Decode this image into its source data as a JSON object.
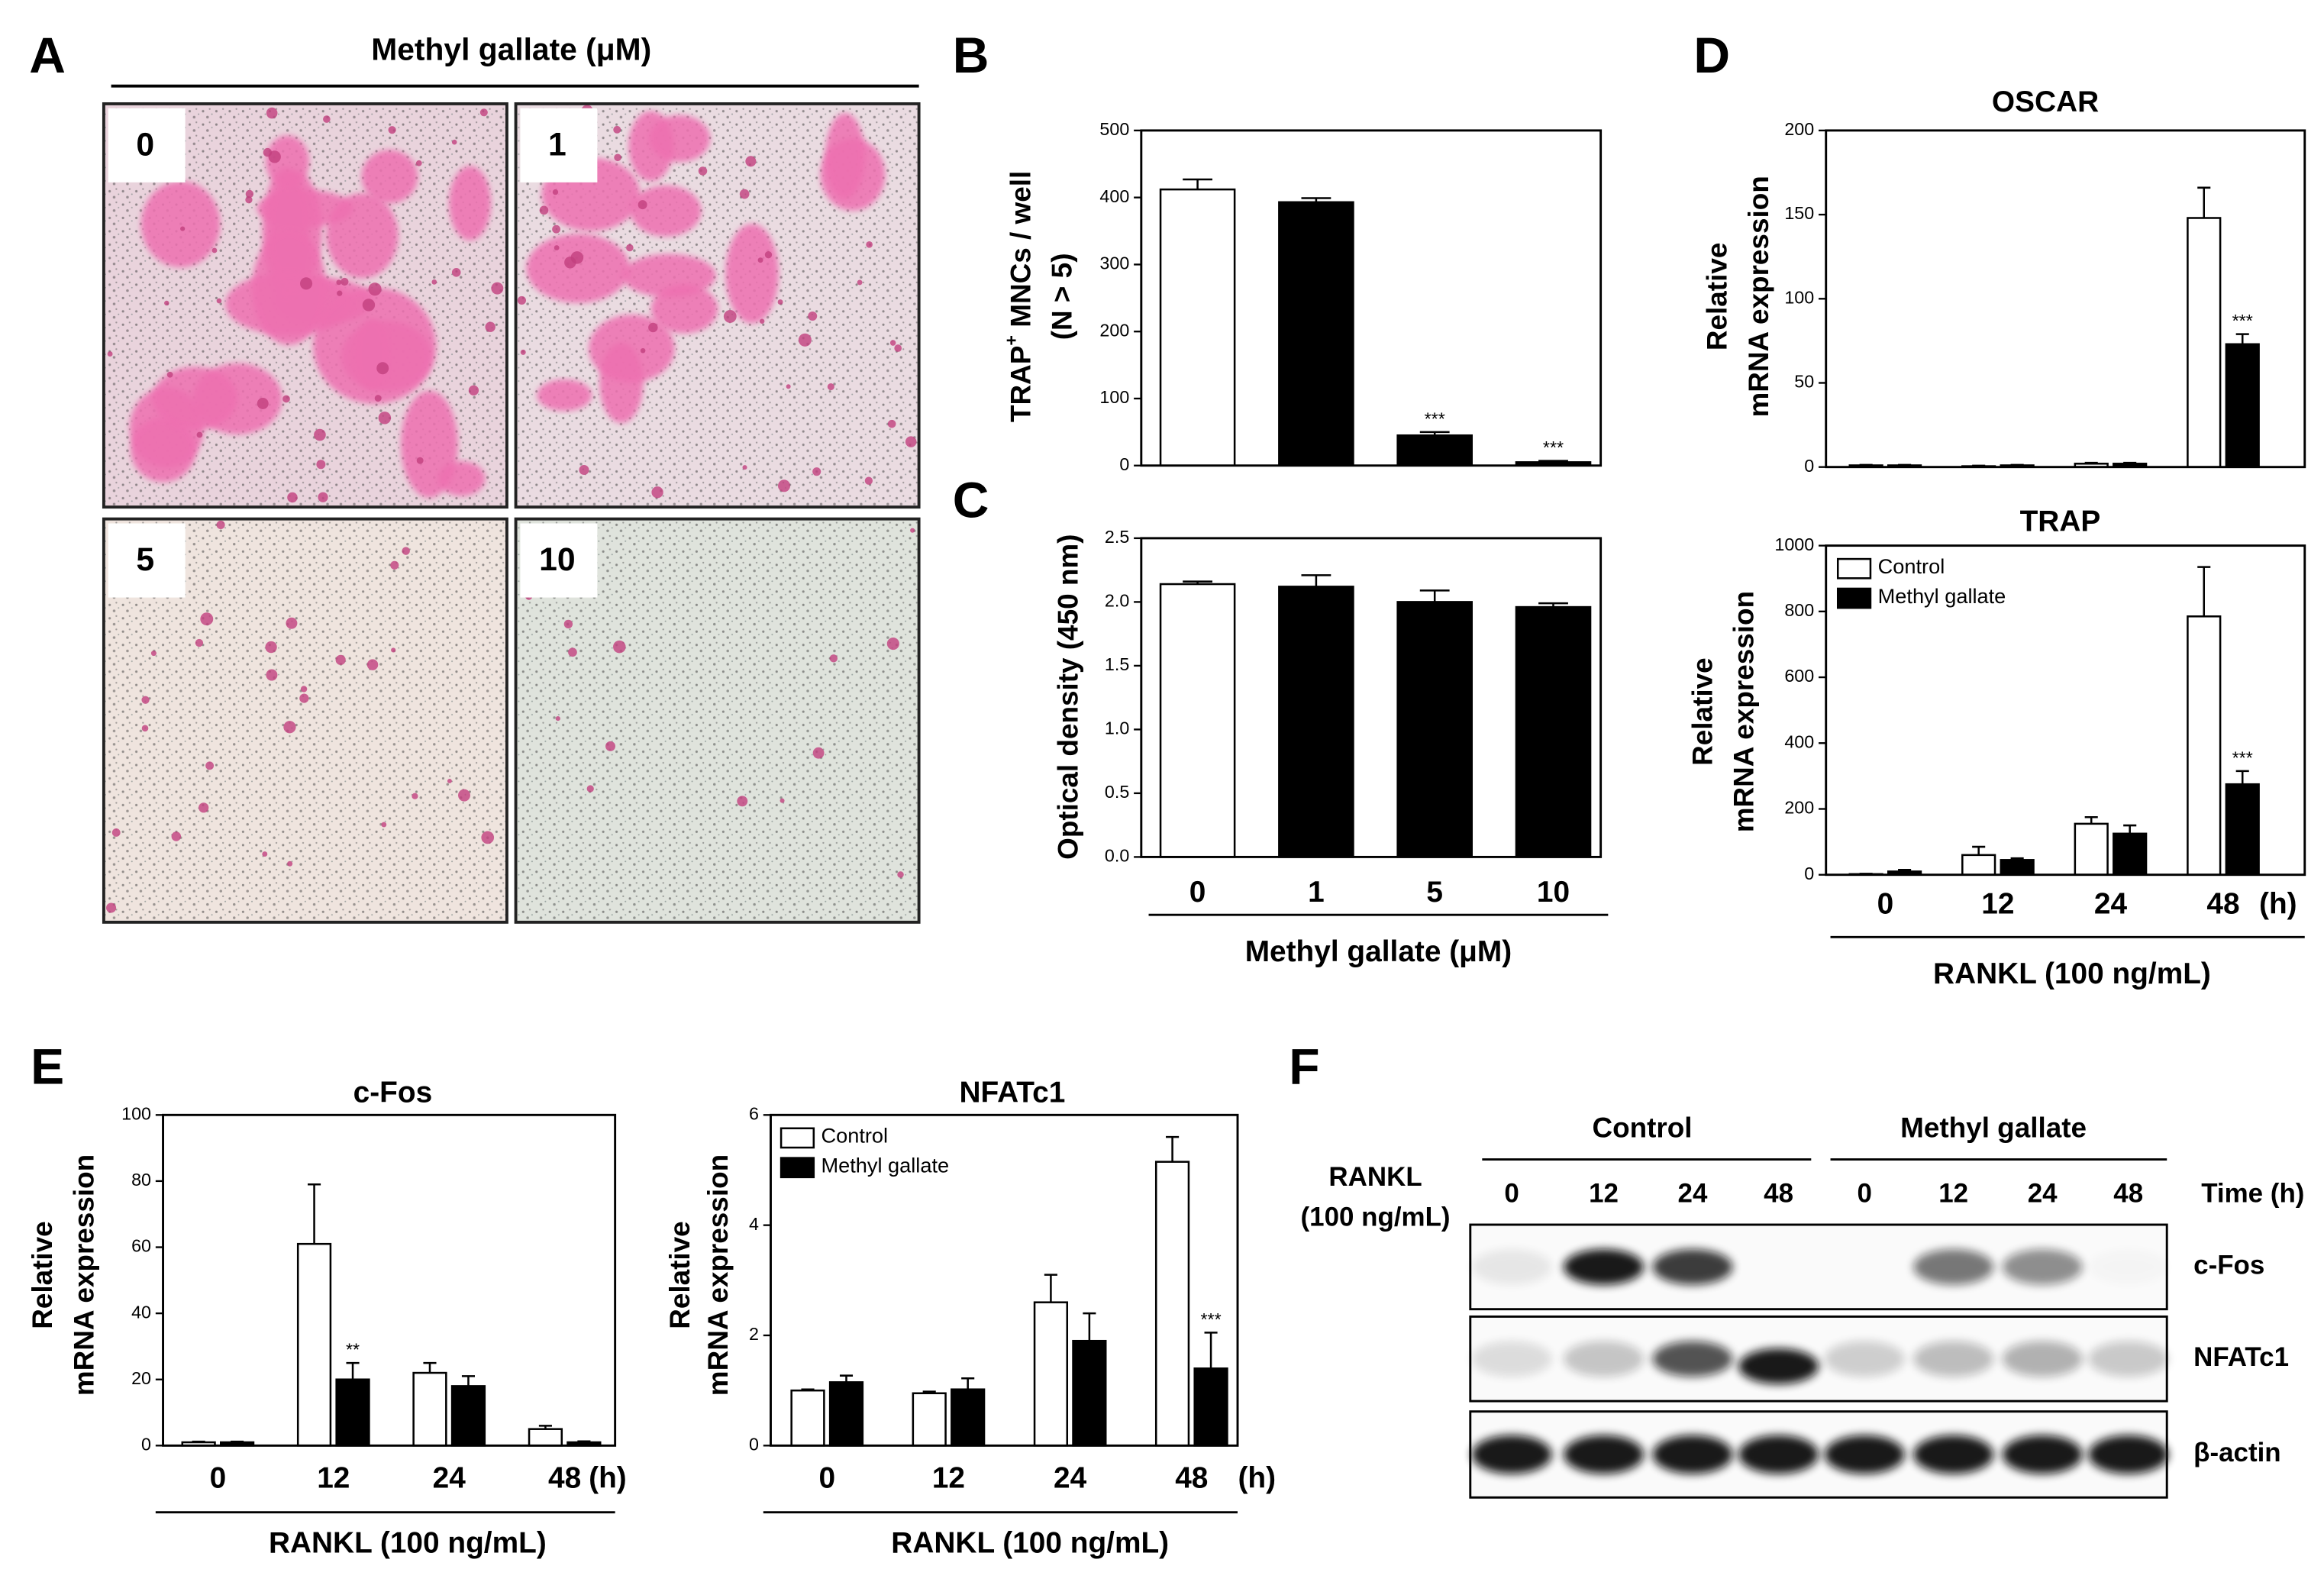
{
  "panel_labels": [
    "A",
    "B",
    "C",
    "D",
    "E",
    "F"
  ],
  "panel_a": {
    "title": "Methyl gallate (μM)",
    "labels": [
      "0",
      "1",
      "5",
      "10"
    ]
  },
  "chart_data": [
    {
      "type": "bar",
      "ylabel": [
        {
          "text": "TRAP",
          "sup": "+",
          "rest": " MNCs / well"
        },
        "(N > 5)"
      ],
      "ylim": [
        0,
        500
      ],
      "yticks": [
        0,
        100,
        200,
        300,
        400,
        500
      ],
      "values": [
        412,
        393,
        45,
        5
      ],
      "errors": [
        15,
        6,
        5,
        2
      ],
      "colors": [
        "#ffffff",
        "#000000",
        "#000000",
        "#000000"
      ],
      "annotations": [
        null,
        null,
        "***",
        "***"
      ]
    },
    {
      "type": "bar",
      "ylabel": [
        "Optical density (450 nm)"
      ],
      "ylim": [
        0,
        2.5
      ],
      "yticks": [
        {
          "value": 0,
          "label": "0.0"
        },
        0.5,
        {
          "value": 1,
          "label": "1.0"
        },
        1.5,
        {
          "value": 2,
          "label": "2.0"
        },
        2.5
      ],
      "categories": [
        "0",
        "1",
        "5",
        "10"
      ],
      "xlabel": "Methyl gallate (μM)",
      "values": [
        2.14,
        2.12,
        2.0,
        1.96
      ],
      "errors": [
        0.02,
        0.09,
        0.09,
        0.03
      ],
      "colors": [
        "#ffffff",
        "#000000",
        "#000000",
        "#000000"
      ]
    },
    {
      "type": "grouped_bar",
      "title": "OSCAR",
      "ylabel": [
        "Relative",
        "mRNA expression"
      ],
      "ylim": [
        0,
        200
      ],
      "yticks": [
        0,
        50,
        100,
        150,
        200
      ],
      "series": [
        {
          "color": "#ffffff",
          "values": [
            1,
            0.5,
            2,
            148
          ],
          "errors": [
            0.3,
            0.3,
            0.5,
            18
          ]
        },
        {
          "color": "#000000",
          "values": [
            1,
            1,
            2,
            73
          ],
          "errors": [
            0.3,
            0.3,
            0.5,
            6
          ],
          "annotations": [
            null,
            null,
            null,
            "***"
          ]
        }
      ]
    },
    {
      "type": "grouped_bar",
      "title": "TRAP",
      "ylabel": [
        "Relative",
        "mRNA expression"
      ],
      "ylim": [
        0,
        1000
      ],
      "yticks": [
        0,
        200,
        400,
        600,
        800,
        1000
      ],
      "categories": [
        "0",
        "12",
        "24",
        "48"
      ],
      "x_unit": "(h)",
      "xlabel": "RANKL (100 ng/mL)",
      "legend": "upper left",
      "series": [
        {
          "name": "Control",
          "color": "#ffffff",
          "values": [
            2,
            60,
            155,
            785
          ],
          "errors": [
            1,
            25,
            20,
            150
          ]
        },
        {
          "name": "Methyl gallate",
          "color": "#000000",
          "values": [
            10,
            45,
            125,
            275
          ],
          "errors": [
            5,
            5,
            25,
            40
          ],
          "annotations": [
            null,
            null,
            null,
            "***"
          ]
        }
      ]
    },
    {
      "type": "grouped_bar",
      "title": "c-Fos",
      "ylabel": [
        "Relative",
        "mRNA expression"
      ],
      "ylim": [
        0,
        100
      ],
      "yticks": [
        0,
        20,
        40,
        60,
        80,
        100
      ],
      "categories": [
        "0",
        "12",
        "24",
        "48"
      ],
      "x_unit": "(h)",
      "xlabel": "RANKL (100 ng/mL)",
      "series": [
        {
          "color": "#ffffff",
          "values": [
            1,
            61,
            22,
            5
          ],
          "errors": [
            0.2,
            18,
            3,
            1
          ]
        },
        {
          "color": "#000000",
          "values": [
            1,
            20,
            18,
            1
          ],
          "errors": [
            0.2,
            5,
            3,
            0.3
          ],
          "annotations": [
            null,
            "**",
            null,
            null
          ]
        }
      ]
    },
    {
      "type": "grouped_bar",
      "title": "NFATc1",
      "ylabel": [
        "Relative",
        "mRNA expression"
      ],
      "ylim": [
        0,
        6
      ],
      "yticks": [
        0,
        2,
        4,
        6
      ],
      "categories": [
        "0",
        "12",
        "24",
        "48"
      ],
      "x_unit": "(h)",
      "xlabel": "RANKL (100 ng/mL)",
      "legend": "upper left",
      "series": [
        {
          "name": "Control",
          "color": "#ffffff",
          "values": [
            1,
            0.95,
            2.6,
            5.15
          ],
          "errors": [
            0.02,
            0.03,
            0.5,
            0.45
          ]
        },
        {
          "name": "Methyl gallate",
          "color": "#000000",
          "values": [
            1.15,
            1.02,
            1.9,
            1.4
          ],
          "errors": [
            0.12,
            0.2,
            0.5,
            0.65
          ],
          "annotations": [
            null,
            null,
            null,
            "***"
          ]
        }
      ]
    }
  ],
  "panel_f": {
    "groups": [
      "Control",
      "Methyl gallate"
    ],
    "treatment": [
      "RANKL",
      "(100 ng/mL)"
    ],
    "lanes": [
      "0",
      "12",
      "24",
      "48",
      "0",
      "12",
      "24",
      "48"
    ],
    "time_label": "Time (h)",
    "rows": [
      "c-Fos",
      "NFATc1",
      "β-actin"
    ]
  }
}
